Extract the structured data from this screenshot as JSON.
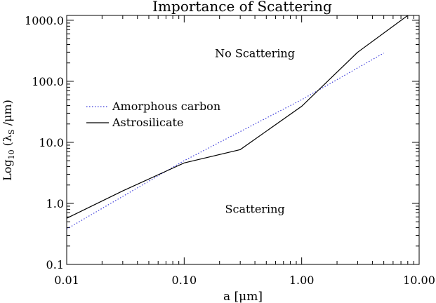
{
  "chart_data": {
    "type": "line",
    "title": "Importance of Scattering",
    "xlabel": "a [μm]",
    "ylabel": {
      "prefix": "Log",
      "sub": "10",
      "mid": " (λ",
      "sub2": "S",
      "suffix": " /μm)"
    },
    "xscale": "log",
    "yscale": "log",
    "xlim": [
      0.01,
      10.0
    ],
    "ylim": [
      0.1,
      1200
    ],
    "xticks": [
      {
        "v": 0.01,
        "label": "0.01"
      },
      {
        "v": 0.1,
        "label": "0.10"
      },
      {
        "v": 1.0,
        "label": "1.00"
      },
      {
        "v": 10.0,
        "label": "10.00"
      }
    ],
    "yticks": [
      {
        "v": 0.1,
        "label": "0.1"
      },
      {
        "v": 1.0,
        "label": "1.0"
      },
      {
        "v": 10.0,
        "label": "10.0"
      },
      {
        "v": 100.0,
        "label": "100.0"
      },
      {
        "v": 1000.0,
        "label": "1000.0"
      }
    ],
    "annotations": [
      {
        "text": "No Scattering",
        "x": 0.4,
        "y": 250
      },
      {
        "text": "Scattering",
        "x": 0.4,
        "y": 0.7
      }
    ],
    "series": [
      {
        "name": "Amorphous carbon",
        "color": "#3b3bdb",
        "style": "dotted",
        "x": [
          0.01,
          0.1,
          1.0,
          5.0
        ],
        "y": [
          0.38,
          5.0,
          50.0,
          290.0
        ]
      },
      {
        "name": "Astrosilicate",
        "color": "#000000",
        "style": "solid",
        "x": [
          0.01,
          0.03,
          0.1,
          0.3,
          1.0,
          3.0,
          8.0
        ],
        "y": [
          0.57,
          1.6,
          4.6,
          7.6,
          39.0,
          300.0,
          1200.0
        ]
      }
    ]
  }
}
